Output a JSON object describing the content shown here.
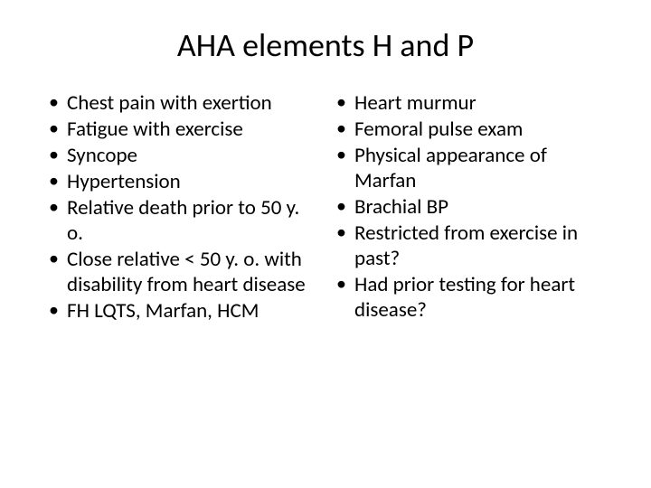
{
  "title": "AHA elements H and P",
  "leftColumn": {
    "items": [
      "Chest pain with exertion",
      "Fatigue with exercise",
      "Syncope",
      "Hypertension",
      "Relative death prior to 50 y. o.",
      "Close relative < 50 y. o. with disability from heart disease",
      "FH LQTS, Marfan, HCM"
    ]
  },
  "rightColumn": {
    "items": [
      "Heart murmur",
      "Femoral pulse exam",
      "Physical appearance of Marfan",
      "Brachial BP",
      "Restricted from exercise in past?",
      "Had prior testing for heart disease?"
    ]
  },
  "styling": {
    "background_color": "#ffffff",
    "text_color": "#000000",
    "title_fontsize": 36,
    "body_fontsize": 23,
    "font_family": "Calibri"
  }
}
